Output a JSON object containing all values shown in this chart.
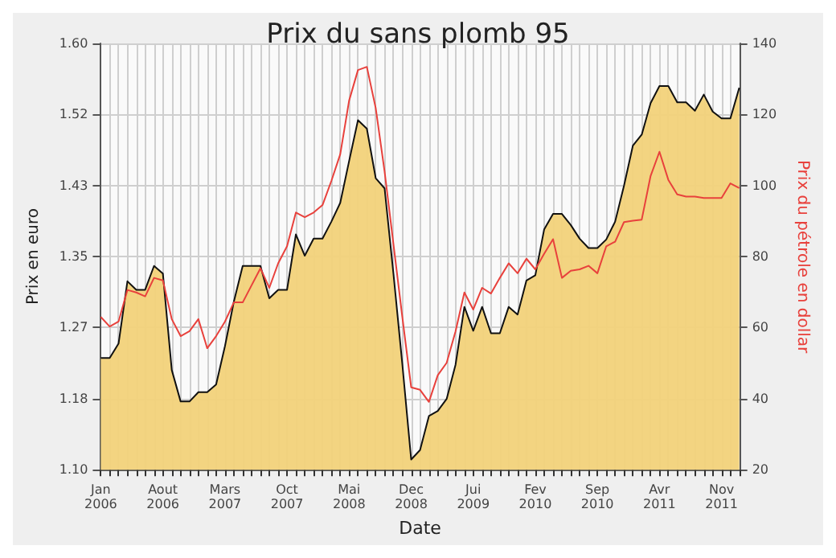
{
  "chart_data": {
    "type": "area",
    "title": "Prix du sans plomb 95",
    "xlabel": "Date",
    "ylabel": "Prix en euro",
    "y2label": "Prix du pétrole en dollar",
    "categories": [
      "Jan 2006",
      null,
      null,
      null,
      null,
      null,
      null,
      "Aout 2006",
      null,
      null,
      null,
      null,
      null,
      null,
      "Mars 2007",
      null,
      null,
      null,
      null,
      null,
      null,
      "Oct 2007",
      null,
      null,
      null,
      null,
      null,
      null,
      "Mai 2008",
      null,
      null,
      null,
      null,
      null,
      null,
      "Dec 2008",
      null,
      null,
      null,
      null,
      null,
      null,
      "Jui 2009",
      null,
      null,
      null,
      null,
      null,
      null,
      "Fev 2010",
      null,
      null,
      null,
      null,
      null,
      null,
      "Sep 2010",
      null,
      null,
      null,
      null,
      null,
      null,
      "Avr 2011",
      null,
      null,
      null,
      null,
      null,
      null,
      "Nov 2011",
      null,
      null
    ],
    "series": [
      {
        "color": "#f2d27a",
        "values": [
          1.231,
          1.231,
          1.248,
          1.321,
          1.311,
          1.311,
          1.339,
          1.33,
          1.217,
          1.18,
          1.18,
          1.191,
          1.191,
          1.2,
          1.245,
          1.297,
          1.339,
          1.339,
          1.339,
          1.301,
          1.311,
          1.311,
          1.376,
          1.351,
          1.371,
          1.371,
          1.391,
          1.413,
          1.462,
          1.51,
          1.5,
          1.442,
          1.43,
          1.33,
          1.224,
          1.112,
          1.123,
          1.163,
          1.169,
          1.183,
          1.223,
          1.291,
          1.263,
          1.291,
          1.26,
          1.26,
          1.291,
          1.282,
          1.322,
          1.328,
          1.382,
          1.4,
          1.4,
          1.387,
          1.371,
          1.36,
          1.36,
          1.37,
          1.391,
          1.433,
          1.48,
          1.493,
          1.53,
          1.55,
          1.55,
          1.531,
          1.531,
          1.521,
          1.54,
          1.52,
          1.512,
          1.512,
          1.548
        ]
      },
      {
        "type": "line",
        "axis": "y2",
        "color": "#e8413c",
        "values": [
          63,
          60.3,
          61.7,
          70.6,
          69.9,
          68.8,
          74,
          73.3,
          62.4,
          57.6,
          59,
          62.4,
          54.2,
          57.6,
          61.7,
          67.1,
          67.1,
          71.9,
          76.7,
          71.2,
          78.1,
          82.9,
          92.4,
          91.1,
          92.4,
          94.5,
          101.3,
          108.8,
          123.9,
          132.5,
          133.4,
          121.8,
          104,
          83.5,
          63,
          43.2,
          42.5,
          39.1,
          46.6,
          50.1,
          58.9,
          69.9,
          65.1,
          71.2,
          69.6,
          74,
          78.1,
          75.3,
          79.4,
          76.4,
          80.8,
          84.9,
          74,
          76,
          76.4,
          77.4,
          75.3,
          82.9,
          84.2,
          89.7,
          90.1,
          90.4,
          102.7,
          109.5,
          101.6,
          97.5,
          96.9,
          96.9,
          96.5,
          96.5,
          96.5,
          100.6,
          99.3
        ]
      }
    ],
    "ylim": [
      1.1,
      1.6
    ],
    "yticks": [
      {
        "value": 1.1,
        "label": "1.10"
      },
      {
        "value": 1.1833,
        "label": "1.18"
      },
      {
        "value": 1.2667,
        "label": "1.27"
      },
      {
        "value": 1.35,
        "label": "1.35"
      },
      {
        "value": 1.4333,
        "label": "1.43"
      },
      {
        "value": 1.5167,
        "label": "1.52"
      },
      {
        "value": 1.6,
        "label": "1.60"
      }
    ],
    "y2lim": [
      20,
      140
    ],
    "y2ticks": [
      20,
      40,
      60,
      80,
      100,
      120,
      140
    ],
    "grid": true,
    "marker": "none"
  }
}
